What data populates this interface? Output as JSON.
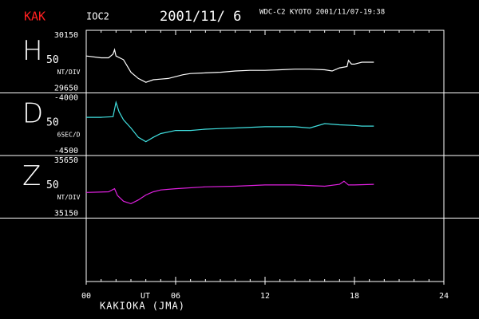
{
  "header": {
    "station": "KAK",
    "code": "IOC2",
    "date": "2001/11/ 6",
    "source": "WDC-C2 KYOTO 2001/11/07-19:38"
  },
  "x_axis": {
    "xlim": [
      0,
      24
    ],
    "xticks": [
      {
        "value": 0,
        "label": "00"
      },
      {
        "value": 6,
        "label": "06"
      },
      12,
      18,
      24
    ],
    "unit_label": "UT",
    "x_label": "KAKIOKA (JMA)"
  },
  "chart_data": [
    {
      "type": "line",
      "title": "H",
      "scale_label": "50",
      "y_label": "NT/DIV",
      "color": "#ffffff",
      "xlim": [
        0,
        24
      ],
      "ylim": [
        29650,
        30150
      ],
      "yticks": [
        29650,
        30150
      ],
      "x": [
        0,
        1,
        1.5,
        1.8,
        1.9,
        2,
        2.5,
        3,
        3.5,
        4,
        4.5,
        5,
        5.5,
        6,
        6.5,
        7,
        8,
        9,
        10,
        11,
        12,
        13,
        14,
        15,
        16,
        16.5,
        17,
        17.5,
        17.6,
        17.8,
        18,
        18.5,
        19,
        19.3
      ],
      "values": [
        29945,
        29930,
        29930,
        29960,
        29995,
        29945,
        29915,
        29815,
        29765,
        29735,
        29755,
        29760,
        29765,
        29780,
        29795,
        29805,
        29810,
        29815,
        29825,
        29830,
        29830,
        29835,
        29840,
        29840,
        29835,
        29825,
        29850,
        29860,
        29910,
        29880,
        29880,
        29895,
        29895,
        29895
      ]
    },
    {
      "type": "line",
      "title": "D",
      "scale_label": "50",
      "y_label": "6SEC/D",
      "color": "#40e0e0",
      "xlim": [
        0,
        24
      ],
      "ylim": [
        -4500,
        -4000
      ],
      "yticks": [
        -4500,
        -4000
      ],
      "x": [
        0,
        1,
        1.8,
        2,
        2.2,
        2.5,
        3,
        3.5,
        4,
        4.5,
        5,
        6,
        7,
        8,
        9,
        10,
        12,
        14,
        15,
        16,
        17,
        18,
        18.5,
        19.3
      ],
      "values": [
        -4195,
        -4195,
        -4190,
        -4075,
        -4150,
        -4215,
        -4280,
        -4355,
        -4390,
        -4355,
        -4325,
        -4300,
        -4300,
        -4290,
        -4285,
        -4280,
        -4270,
        -4270,
        -4280,
        -4245,
        -4255,
        -4260,
        -4265,
        -4265
      ]
    },
    {
      "type": "line",
      "title": "Z",
      "scale_label": "50",
      "y_label": "NT/DIV",
      "color": "#e020e0",
      "xlim": [
        0,
        24
      ],
      "ylim": [
        35150,
        35650
      ],
      "yticks": [
        35150,
        35650
      ],
      "x": [
        0,
        1.5,
        1.9,
        2.1,
        2.5,
        3,
        3.5,
        4,
        4.5,
        5,
        6,
        8,
        10,
        12,
        14,
        16,
        17,
        17.3,
        17.6,
        18,
        19.3
      ],
      "values": [
        35355,
        35360,
        35385,
        35330,
        35285,
        35265,
        35295,
        35335,
        35360,
        35375,
        35385,
        35400,
        35405,
        35415,
        35415,
        35405,
        35420,
        35445,
        35415,
        35415,
        35420
      ]
    }
  ]
}
